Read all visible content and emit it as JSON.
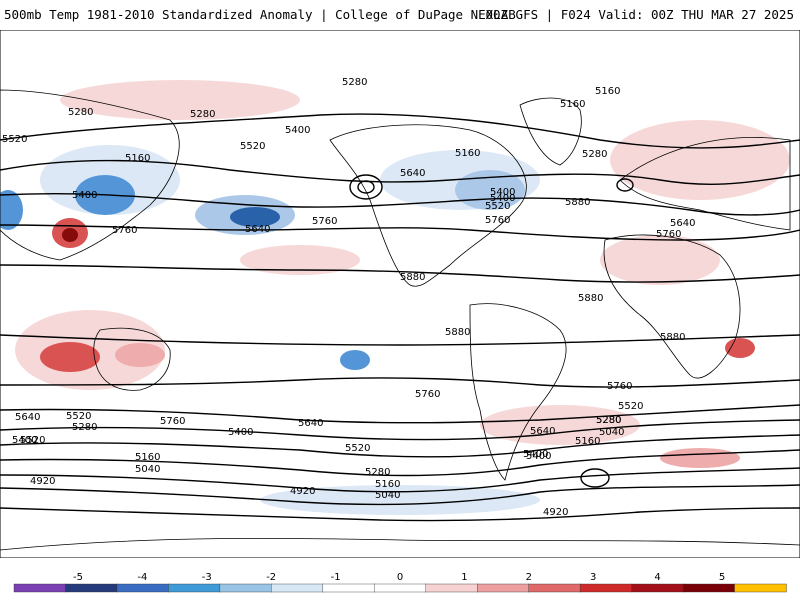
{
  "header": {
    "title": "500mb Temp 1981-2010 Standardized Anomaly | College of DuPage NEXLAB",
    "run_info": "00Z GFS | F024 Valid: 00Z THU MAR 27 2025"
  },
  "map": {
    "field": "500mb temperature standardized anomaly",
    "contour_field": "500mb geopotential height (m)",
    "contour_labels": [
      {
        "text": "5280"
      },
      {
        "text": "5160"
      },
      {
        "text": "5160"
      },
      {
        "text": "5280"
      },
      {
        "text": "5280"
      },
      {
        "text": "5520"
      },
      {
        "text": "5160"
      },
      {
        "text": "5400"
      },
      {
        "text": "5400"
      },
      {
        "text": "5520"
      },
      {
        "text": "5160"
      },
      {
        "text": "5400"
      },
      {
        "text": "5280"
      },
      {
        "text": "5640"
      },
      {
        "text": "5520"
      },
      {
        "text": "5400"
      },
      {
        "text": "5760"
      },
      {
        "text": "5880"
      },
      {
        "text": "5760"
      },
      {
        "text": "5640"
      },
      {
        "text": "5760"
      },
      {
        "text": "5640"
      },
      {
        "text": "5760"
      },
      {
        "text": "5880"
      },
      {
        "text": "5880"
      },
      {
        "text": "5880"
      },
      {
        "text": "5880"
      },
      {
        "text": "5760"
      },
      {
        "text": "5760"
      },
      {
        "text": "5640"
      },
      {
        "text": "5520"
      },
      {
        "text": "5400"
      },
      {
        "text": "5280"
      },
      {
        "text": "5760"
      },
      {
        "text": "5640"
      },
      {
        "text": "5520"
      },
      {
        "text": "5400"
      },
      {
        "text": "5280"
      },
      {
        "text": "5160"
      },
      {
        "text": "5040"
      },
      {
        "text": "5400"
      },
      {
        "text": "5520"
      },
      {
        "text": "5280"
      },
      {
        "text": "5160"
      },
      {
        "text": "5040"
      },
      {
        "text": "4920"
      },
      {
        "text": "4920"
      },
      {
        "text": "5640"
      },
      {
        "text": "5160"
      },
      {
        "text": "5280"
      },
      {
        "text": "5040"
      },
      {
        "text": "5400"
      },
      {
        "text": "5520"
      },
      {
        "text": "4920"
      }
    ],
    "colors": {
      "warm1": "#f7d6d6",
      "warm2": "#eea8a8",
      "warm3": "#d94a4a",
      "warm4": "#b3151b",
      "warm5": "#800000",
      "cool1": "#dbe7f5",
      "cool2": "#a8c6e8",
      "cool3": "#4a90d4",
      "cool4": "#1f5aa6",
      "cool5": "#16306e",
      "land": "#ffffff",
      "contour": "#000000"
    }
  },
  "colorbar": {
    "ticks": [
      "-5",
      "-4",
      "-3",
      "-2",
      "-1",
      "0",
      "1",
      "2",
      "3",
      "4",
      "5"
    ],
    "segments": [
      "#7a3fb0",
      "#243a7a",
      "#3a6cc2",
      "#3f9ad8",
      "#9ac4e6",
      "#d9e8f5",
      "#ffffff",
      "#ffffff",
      "#f6d2d2",
      "#eea0a0",
      "#e06a6a",
      "#cf2a2a",
      "#a30f18",
      "#7a0008",
      "#ffc000"
    ]
  }
}
